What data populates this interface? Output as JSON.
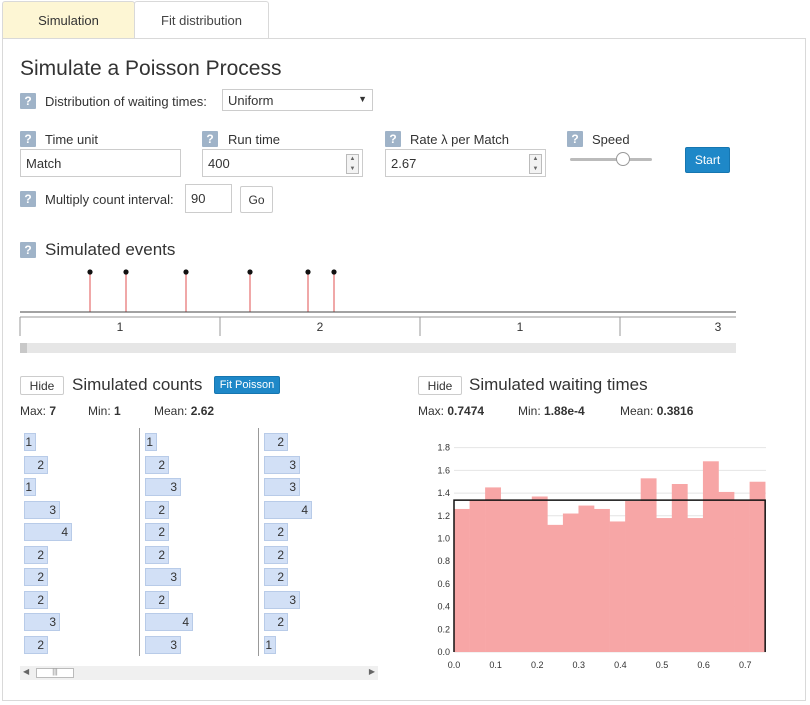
{
  "tabs": [
    {
      "label": "Simulation"
    },
    {
      "label": "Fit distribution"
    }
  ],
  "title": "Simulate a Poisson Process",
  "help_glyph": "?",
  "dist": {
    "label": "Distribution of waiting times:",
    "value": "Uniform"
  },
  "time_unit": {
    "label": "Time unit",
    "value": "Match"
  },
  "run_time": {
    "label": "Run time",
    "value": "400"
  },
  "rate": {
    "label": "Rate λ per Match",
    "value": "2.67"
  },
  "speed": {
    "label": "Speed",
    "level": 0.65
  },
  "start_label": "Start",
  "multiply": {
    "label": "Multiply count interval:",
    "value": "90",
    "go_label": "Go"
  },
  "events": {
    "title": "Simulated events",
    "times": [
      0.35,
      0.53,
      0.83,
      1.15,
      1.44,
      1.57
    ],
    "interval_counts": [
      "1",
      "2",
      "1",
      "3"
    ]
  },
  "counts": {
    "hide_label": "Hide",
    "title": "Simulated counts",
    "fit_label": "Fit Poisson",
    "max_label": "Max:",
    "max": "7",
    "min_label": "Min:",
    "min": "1",
    "mean_label": "Mean:",
    "mean": "2.62",
    "columns": [
      [
        "1",
        "2",
        "1",
        "3",
        "4",
        "2",
        "2",
        "2",
        "3",
        "2"
      ],
      [
        "1",
        "2",
        "3",
        "2",
        "2",
        "2",
        "3",
        "2",
        "4",
        "3"
      ],
      [
        "2",
        "3",
        "3",
        "4",
        "2",
        "2",
        "2",
        "3",
        "2",
        "1"
      ]
    ]
  },
  "waiting": {
    "hide_label": "Hide",
    "title": "Simulated waiting times",
    "max_label": "Max:",
    "max": "0.7474",
    "min_label": "Min:",
    "min": "1.88e-4",
    "mean_label": "Mean:",
    "mean": "0.3816"
  },
  "chart_data": {
    "type": "bar",
    "title": "",
    "xlabel": "",
    "ylabel": "",
    "bin_width": 0.0374,
    "x_start": 0.0,
    "values": [
      1.26,
      1.34,
      1.45,
      1.34,
      1.34,
      1.37,
      1.12,
      1.22,
      1.29,
      1.26,
      1.15,
      1.33,
      1.53,
      1.18,
      1.48,
      1.18,
      1.68,
      1.41,
      1.34,
      1.5
    ],
    "density_line": 1.338,
    "xlim": [
      0,
      0.75
    ],
    "ylim": [
      0,
      1.85
    ],
    "xticks": [
      "0.0",
      "0.1",
      "0.2",
      "0.3",
      "0.4",
      "0.5",
      "0.6",
      "0.7"
    ],
    "yticks": [
      "0.0",
      "0.2",
      "0.4",
      "0.6",
      "0.8",
      "1.0",
      "1.2",
      "1.4",
      "1.6",
      "1.8"
    ],
    "bar_color": "#f7a6a6",
    "line_color": "#111111",
    "grid": true
  }
}
